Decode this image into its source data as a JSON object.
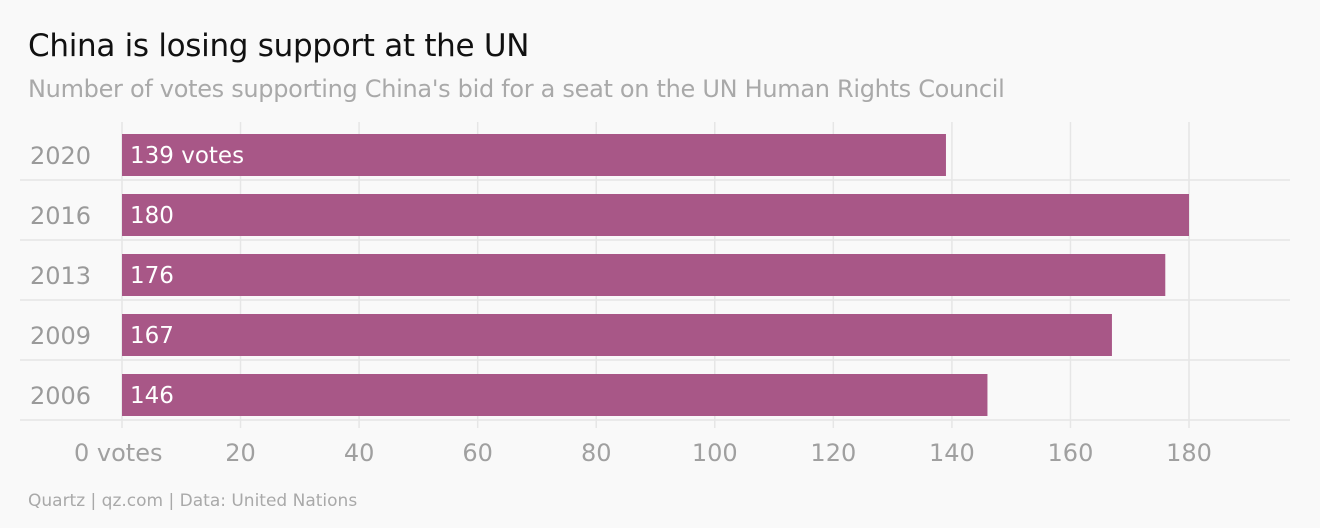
{
  "title": "China is losing support at the UN",
  "subtitle": "Number of votes supporting China's bid for a seat on the UN Human Rights Council",
  "source": "Quartz | qz.com | Data: United Nations",
  "colors": {
    "bar": "#a85787",
    "grid": "#e6e6e6",
    "background": "#f9f9f9"
  },
  "chart_data": {
    "type": "bar",
    "orientation": "horizontal",
    "categories": [
      "2020",
      "2016",
      "2013",
      "2009",
      "2006"
    ],
    "values": [
      139,
      180,
      176,
      167,
      146
    ],
    "bar_labels": [
      "139 votes",
      "180",
      "176",
      "167",
      "146"
    ],
    "xticks": [
      0,
      20,
      40,
      60,
      80,
      100,
      120,
      140,
      160,
      180
    ],
    "xtick_labels": [
      "0 votes",
      "20",
      "40",
      "60",
      "80",
      "100",
      "120",
      "140",
      "160",
      "180"
    ],
    "xlim": [
      0,
      198
    ],
    "grid": true
  }
}
